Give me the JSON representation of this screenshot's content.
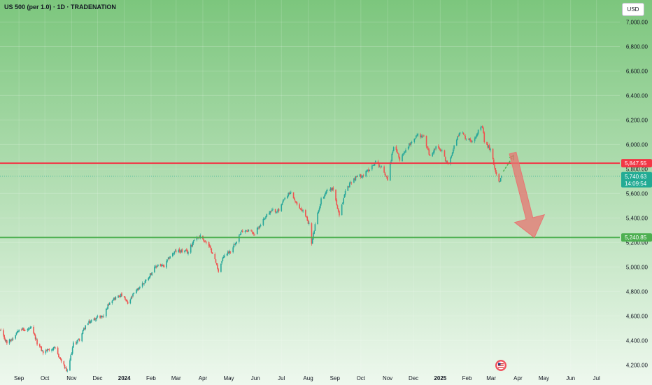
{
  "header": {
    "symbol_title": "US 500 (per 1.0) · 1D · TRADENATION",
    "currency": "USD"
  },
  "colors": {
    "background_top": "#7cc67d",
    "background_bottom": "#eef8ee",
    "candle_up": "#26a69a",
    "candle_down": "#ef5350",
    "resistance_line": "#f23645",
    "support_line": "#4caf50",
    "last_price_tag": "#22ab94",
    "arrow_down": "#e77672",
    "arrow_up": "#4caf50"
  },
  "chart_data": {
    "type": "candlestick",
    "price_axis": {
      "ticks": [
        4200,
        4400,
        4600,
        4800,
        5000,
        5200,
        5400,
        5600,
        5800,
        6000,
        6200,
        6400,
        6600,
        6800,
        7000
      ],
      "tick_labels": [
        "4,200.00",
        "4,400.00",
        "4,600.00",
        "4,800.00",
        "5,000.00",
        "5,200.00",
        "5,400.00",
        "5,600.00",
        "5,800.00",
        "6,000.00",
        "6,200.00",
        "6,400.00",
        "6,600.00",
        "6,800.00",
        "7,000.00"
      ],
      "ylim": [
        4150,
        7180
      ]
    },
    "time_axis": {
      "labels": [
        "Sep",
        "Oct",
        "Nov",
        "Dec",
        "2024",
        "Feb",
        "Mar",
        "Apr",
        "May",
        "Jun",
        "Jul",
        "Aug",
        "Sep",
        "Oct",
        "Nov",
        "Dec",
        "2025",
        "Feb",
        "Mar",
        "Apr",
        "May",
        "Jun",
        "Jul"
      ],
      "label_dates": [
        "2023-09-01",
        "2023-10-01",
        "2023-11-01",
        "2023-12-01",
        "2024-01-01",
        "2024-02-01",
        "2024-03-01",
        "2024-04-01",
        "2024-05-01",
        "2024-06-01",
        "2024-07-01",
        "2024-08-01",
        "2024-09-01",
        "2024-10-01",
        "2024-11-01",
        "2024-12-01",
        "2025-01-01",
        "2025-02-01",
        "2025-03-01",
        "2025-04-01",
        "2025-05-01",
        "2025-06-01",
        "2025-07-01"
      ],
      "bold_labels": [
        "2024",
        "2025"
      ],
      "xlim": [
        "2023-08-10",
        "2025-07-28"
      ]
    },
    "price_path": [
      [
        "2023-08-10",
        4480
      ],
      [
        "2023-08-18",
        4380
      ],
      [
        "2023-08-25",
        4420
      ],
      [
        "2023-09-01",
        4500
      ],
      [
        "2023-09-08",
        4480
      ],
      [
        "2023-09-15",
        4500
      ],
      [
        "2023-09-22",
        4380
      ],
      [
        "2023-09-29",
        4300
      ],
      [
        "2023-10-06",
        4330
      ],
      [
        "2023-10-13",
        4330
      ],
      [
        "2023-10-20",
        4230
      ],
      [
        "2023-10-27",
        4140
      ],
      [
        "2023-11-03",
        4370
      ],
      [
        "2023-11-10",
        4410
      ],
      [
        "2023-11-17",
        4520
      ],
      [
        "2023-11-24",
        4560
      ],
      [
        "2023-12-01",
        4590
      ],
      [
        "2023-12-08",
        4600
      ],
      [
        "2023-12-15",
        4720
      ],
      [
        "2023-12-22",
        4750
      ],
      [
        "2023-12-29",
        4770
      ],
      [
        "2024-01-05",
        4700
      ],
      [
        "2024-01-12",
        4780
      ],
      [
        "2024-01-19",
        4840
      ],
      [
        "2024-01-26",
        4890
      ],
      [
        "2024-02-02",
        4960
      ],
      [
        "2024-02-09",
        5020
      ],
      [
        "2024-02-16",
        5000
      ],
      [
        "2024-02-23",
        5090
      ],
      [
        "2024-03-01",
        5130
      ],
      [
        "2024-03-08",
        5130
      ],
      [
        "2024-03-15",
        5120
      ],
      [
        "2024-03-22",
        5230
      ],
      [
        "2024-03-29",
        5250
      ],
      [
        "2024-04-05",
        5200
      ],
      [
        "2024-04-12",
        5120
      ],
      [
        "2024-04-19",
        4970
      ],
      [
        "2024-04-26",
        5100
      ],
      [
        "2024-05-03",
        5130
      ],
      [
        "2024-05-10",
        5220
      ],
      [
        "2024-05-17",
        5300
      ],
      [
        "2024-05-24",
        5300
      ],
      [
        "2024-05-31",
        5270
      ],
      [
        "2024-06-07",
        5350
      ],
      [
        "2024-06-14",
        5430
      ],
      [
        "2024-06-21",
        5460
      ],
      [
        "2024-06-28",
        5460
      ],
      [
        "2024-07-05",
        5560
      ],
      [
        "2024-07-12",
        5610
      ],
      [
        "2024-07-19",
        5500
      ],
      [
        "2024-07-26",
        5460
      ],
      [
        "2024-08-02",
        5350
      ],
      [
        "2024-08-05",
        5190
      ],
      [
        "2024-08-09",
        5340
      ],
      [
        "2024-08-16",
        5550
      ],
      [
        "2024-08-23",
        5630
      ],
      [
        "2024-08-30",
        5640
      ],
      [
        "2024-09-06",
        5410
      ],
      [
        "2024-09-13",
        5620
      ],
      [
        "2024-09-20",
        5700
      ],
      [
        "2024-09-27",
        5740
      ],
      [
        "2024-10-04",
        5750
      ],
      [
        "2024-10-11",
        5800
      ],
      [
        "2024-10-18",
        5860
      ],
      [
        "2024-10-25",
        5810
      ],
      [
        "2024-11-01",
        5720
      ],
      [
        "2024-11-08",
        5990
      ],
      [
        "2024-11-15",
        5880
      ],
      [
        "2024-11-22",
        5960
      ],
      [
        "2024-11-29",
        6030
      ],
      [
        "2024-12-06",
        6080
      ],
      [
        "2024-12-13",
        6060
      ],
      [
        "2024-12-20",
        5900
      ],
      [
        "2024-12-27",
        5980
      ],
      [
        "2025-01-03",
        5940
      ],
      [
        "2025-01-10",
        5830
      ],
      [
        "2025-01-17",
        5990
      ],
      [
        "2025-01-24",
        6110
      ],
      [
        "2025-01-31",
        6050
      ],
      [
        "2025-02-07",
        6030
      ],
      [
        "2025-02-14",
        6110
      ],
      [
        "2025-02-19",
        6140
      ],
      [
        "2025-02-21",
        6020
      ],
      [
        "2025-02-28",
        5960
      ],
      [
        "2025-03-04",
        5840
      ],
      [
        "2025-03-07",
        5760
      ],
      [
        "2025-03-11",
        5690
      ],
      [
        "2025-03-13",
        5740
      ]
    ],
    "horizontal_levels": [
      {
        "value": 5847.55,
        "label": "5,847.55",
        "color_key": "resistance_line"
      },
      {
        "value": 5240.85,
        "label": "5,240.85",
        "color_key": "support_line"
      }
    ],
    "last_price": {
      "value": 5740.63,
      "label": "5,740.63",
      "countdown": "14:09:54"
    },
    "annotations": {
      "up_arrow": {
        "from": [
          "2025-03-15",
          5780
        ],
        "to": [
          "2025-03-27",
          5910
        ]
      },
      "down_arrow": {
        "from": [
          "2025-03-26",
          5930
        ],
        "to": [
          "2025-04-20",
          5240
        ]
      }
    }
  }
}
